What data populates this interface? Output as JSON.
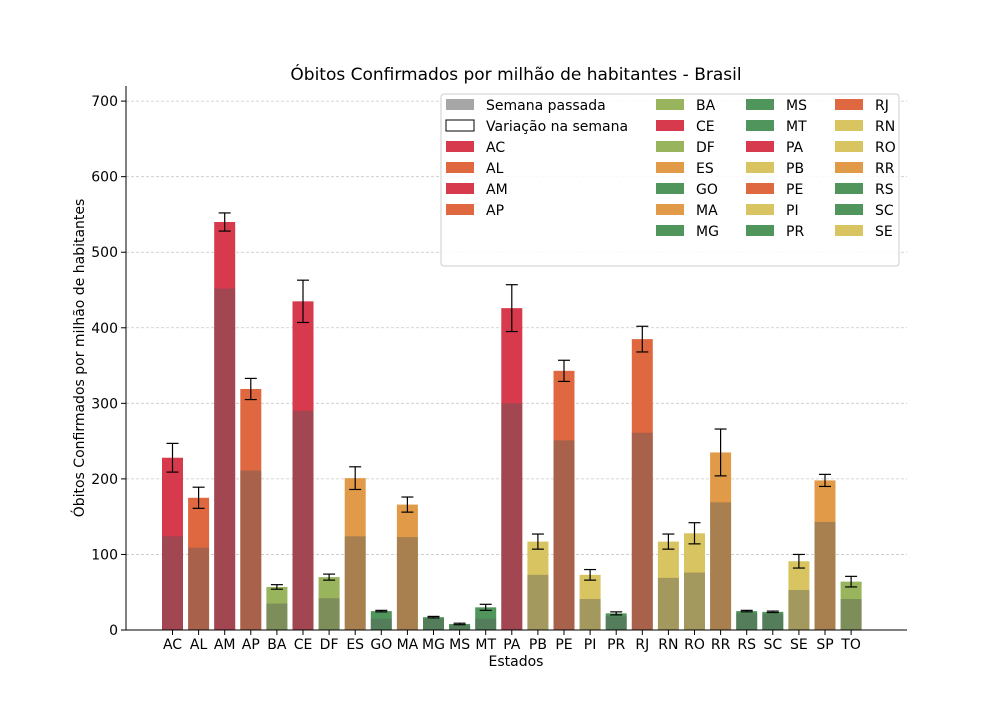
{
  "chart_data": {
    "type": "bar",
    "title": "Óbitos Confirmados por milhão de habitantes - Brasil",
    "xlabel": "Estados",
    "ylabel": "Óbitos Confirmados por milhão de habitantes",
    "ylim": [
      0,
      720
    ],
    "yticks": [
      0,
      100,
      200,
      300,
      400,
      500,
      600,
      700
    ],
    "grid": "horizontal dashed",
    "legend_position": "top-right",
    "legend_special": [
      {
        "label": "Semana passada",
        "color": "#a6a6a6"
      },
      {
        "label": "Variação na semana",
        "color": "#ffffff"
      }
    ],
    "categories": [
      "AC",
      "AL",
      "AM",
      "AP",
      "BA",
      "CE",
      "DF",
      "ES",
      "GO",
      "MA",
      "MG",
      "MS",
      "MT",
      "PA",
      "PB",
      "PE",
      "PI",
      "PR",
      "RJ",
      "RN",
      "RO",
      "RR",
      "RS",
      "SC",
      "SE",
      "SP",
      "TO"
    ],
    "series": [
      {
        "name": "Semana passada",
        "values": [
          124,
          109,
          452,
          211,
          35,
          290,
          42,
          124,
          15,
          123,
          15,
          6,
          15,
          300,
          73,
          251,
          41,
          18,
          261,
          69,
          76,
          169,
          22,
          21,
          53,
          143,
          41
        ]
      },
      {
        "name": "Variação na semana",
        "values": [
          228,
          175,
          540,
          319,
          57,
          435,
          70,
          201,
          25,
          166,
          17,
          8,
          30,
          426,
          117,
          343,
          73,
          22,
          385,
          117,
          128,
          235,
          25,
          24,
          91,
          198,
          64
        ]
      }
    ],
    "errors": [
      19,
      14,
      12,
      14,
      3,
      28,
      4,
      15,
      1,
      10,
      1,
      1,
      4,
      31,
      10,
      14,
      7,
      2,
      17,
      10,
      14,
      31,
      1,
      1,
      9,
      8,
      7
    ],
    "colors": [
      "#d63a4c",
      "#e06840",
      "#d63a4c",
      "#e06840",
      "#98b45c",
      "#d63a4c",
      "#98b45c",
      "#e09a48",
      "#50965c",
      "#e09a48",
      "#50965c",
      "#50965c",
      "#50965c",
      "#d63a4c",
      "#d8c460",
      "#e06840",
      "#d8c460",
      "#50965c",
      "#e06840",
      "#d8c460",
      "#d8c460",
      "#e09a48",
      "#50965c",
      "#50965c",
      "#d8c460",
      "#e09a48",
      "#98b45c"
    ]
  }
}
